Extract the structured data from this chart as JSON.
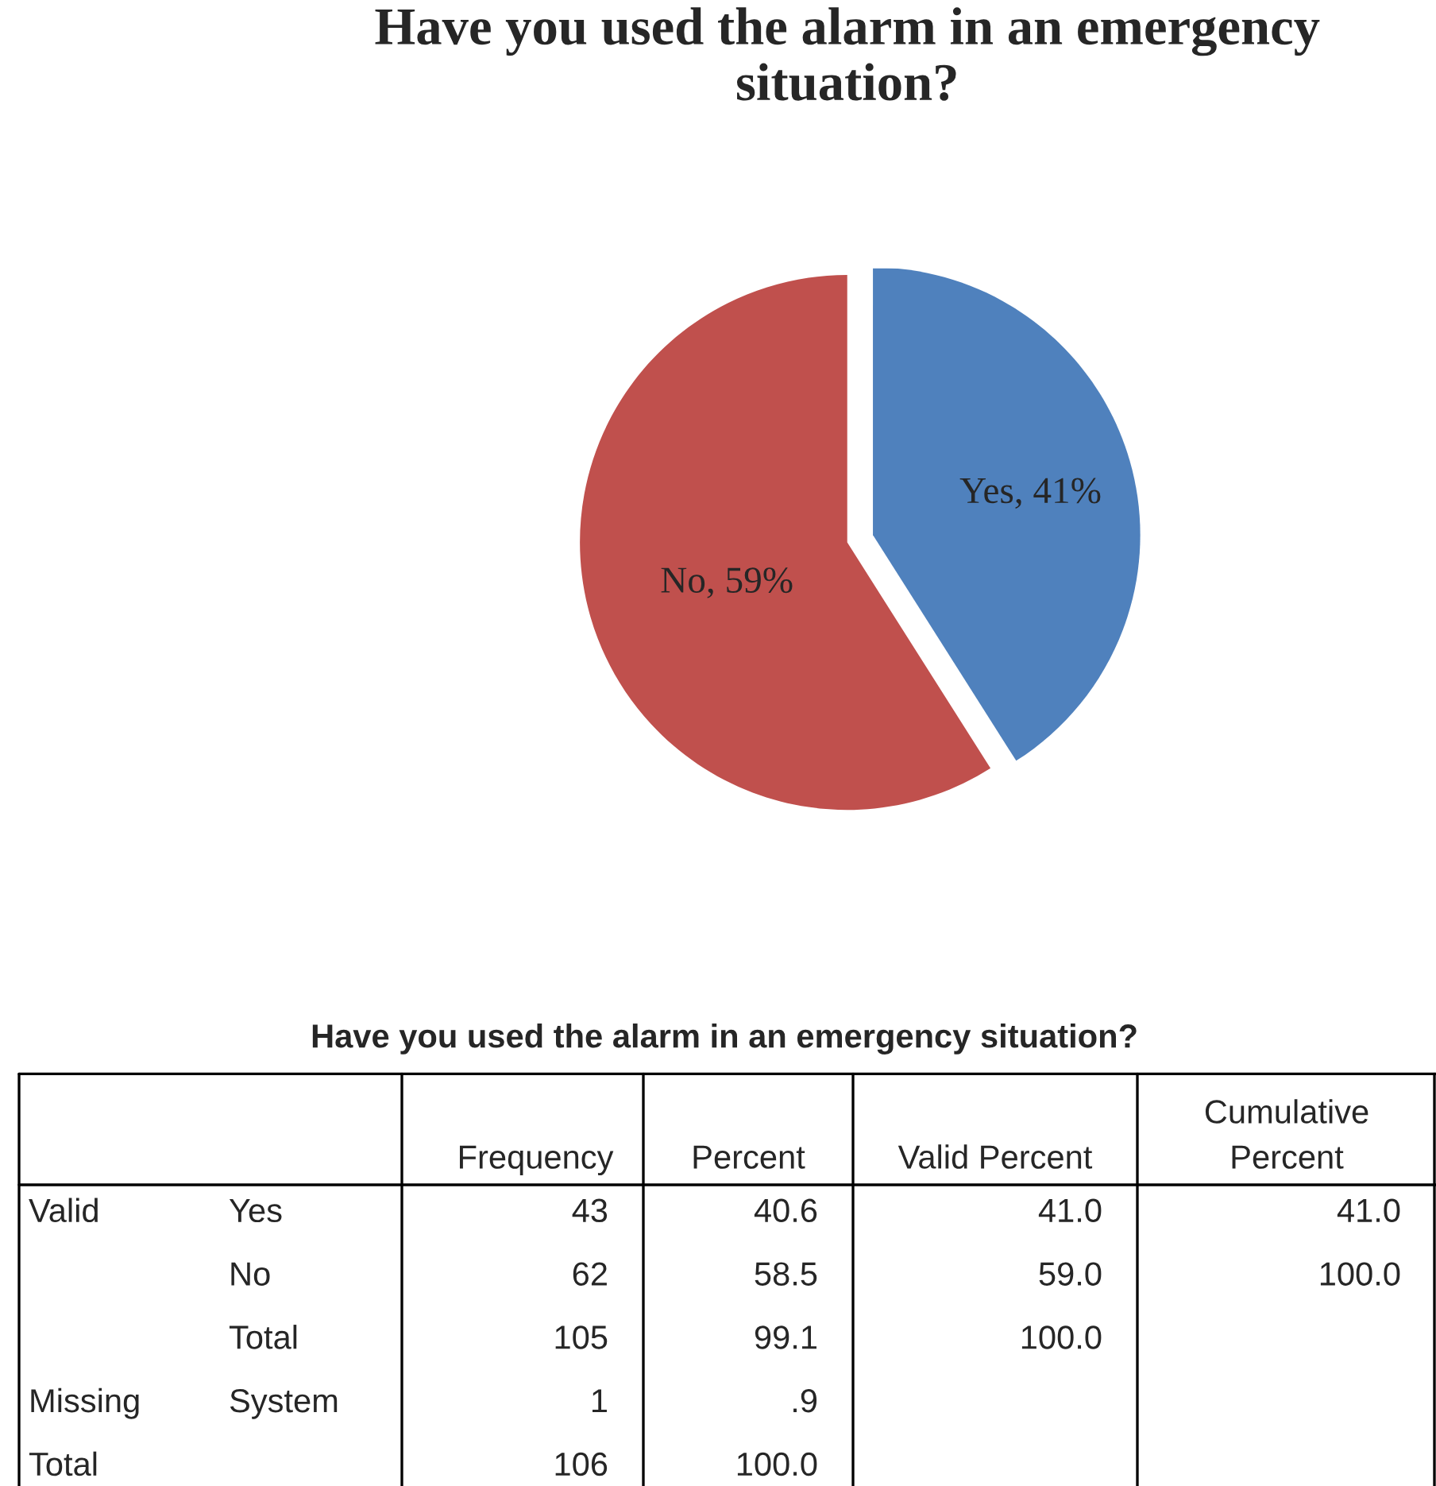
{
  "chart_data": [
    {
      "type": "pie",
      "title": "Have you used the alarm in an emergency situation?",
      "categories": [
        "Yes",
        "No"
      ],
      "values": [
        41,
        59
      ],
      "colors": [
        "#4f81bd",
        "#c0504d"
      ],
      "value_labels": [
        ", 41%",
        ", 59%"
      ]
    },
    {
      "type": "other",
      "title": "Have you used the alarm in an emergency situation?",
      "cell_labels": [
        [
          null,
          null,
          "Frequency",
          "Percent",
          "Valid Percent",
          "Cumulative\nPercent"
        ],
        [
          "Valid",
          "Yes",
          "43",
          "40.6",
          "41.0",
          "41.0"
        ],
        [
          null,
          "No",
          "62",
          "58.5",
          "59.0",
          "100.0"
        ],
        [
          null,
          "Total",
          "105",
          "99.1",
          "100.0",
          null
        ],
        [
          "Missing",
          "System",
          "1",
          ".9",
          null,
          null
        ],
        [
          "Total",
          null,
          "106",
          "100.0",
          null,
          null
        ]
      ]
    }
  ]
}
